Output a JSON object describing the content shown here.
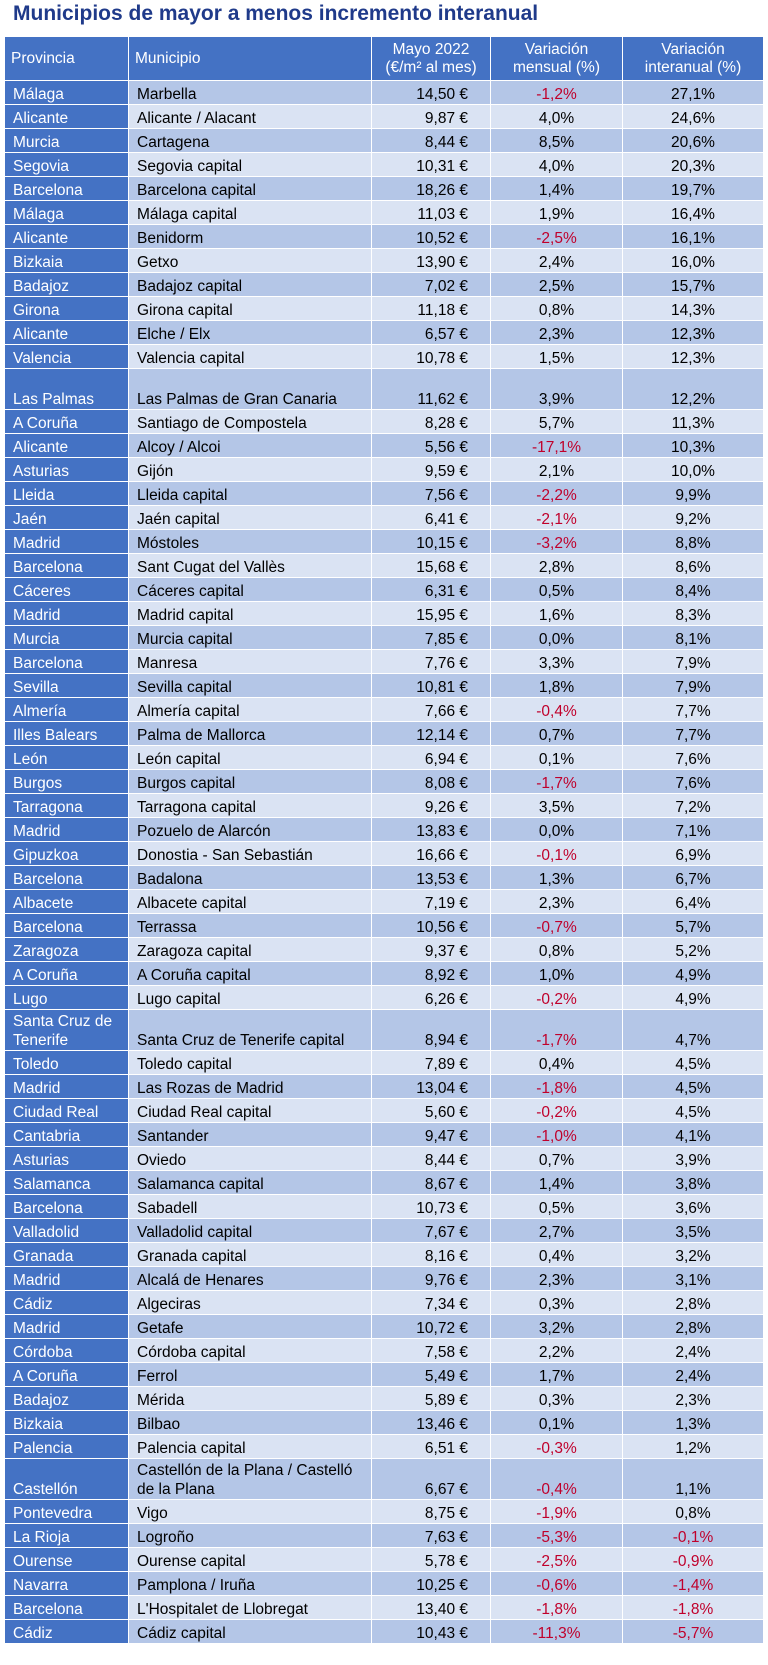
{
  "title": "Municipios de mayor a menos incremento interanual",
  "headers": {
    "provincia": "Provincia",
    "municipio": "Municipio",
    "precio": "Mayo 2022 (€/m² al mes)",
    "mensual": "Variación mensual (%)",
    "interanual": "Variación interanual (%)"
  },
  "rows": [
    {
      "provincia": "Málaga",
      "municipio": "Marbella",
      "precio": "14,50 €",
      "mensual": "-1,2%",
      "interanual": "27,1%"
    },
    {
      "provincia": "Alicante",
      "municipio": "Alicante / Alacant",
      "precio": "9,87 €",
      "mensual": "4,0%",
      "interanual": "24,6%"
    },
    {
      "provincia": "Murcia",
      "municipio": "Cartagena",
      "precio": "8,44 €",
      "mensual": "8,5%",
      "interanual": "20,6%"
    },
    {
      "provincia": "Segovia",
      "municipio": "Segovia capital",
      "precio": "10,31 €",
      "mensual": "4,0%",
      "interanual": "20,3%"
    },
    {
      "provincia": "Barcelona",
      "municipio": "Barcelona capital",
      "precio": "18,26 €",
      "mensual": "1,4%",
      "interanual": "19,7%"
    },
    {
      "provincia": "Málaga",
      "municipio": "Málaga capital",
      "precio": "11,03 €",
      "mensual": "1,9%",
      "interanual": "16,4%"
    },
    {
      "provincia": "Alicante",
      "municipio": "Benidorm",
      "precio": "10,52 €",
      "mensual": "-2,5%",
      "interanual": "16,1%"
    },
    {
      "provincia": "Bizkaia",
      "municipio": "Getxo",
      "precio": "13,90 €",
      "mensual": "2,4%",
      "interanual": "16,0%"
    },
    {
      "provincia": "Badajoz",
      "municipio": "Badajoz capital",
      "precio": "7,02 €",
      "mensual": "2,5%",
      "interanual": "15,7%"
    },
    {
      "provincia": "Girona",
      "municipio": "Girona capital",
      "precio": "11,18 €",
      "mensual": "0,8%",
      "interanual": "14,3%"
    },
    {
      "provincia": "Alicante",
      "municipio": "Elche / Elx",
      "precio": "6,57 €",
      "mensual": "2,3%",
      "interanual": "12,3%"
    },
    {
      "provincia": "Valencia",
      "municipio": "Valencia capital",
      "precio": "10,78 €",
      "mensual": "1,5%",
      "interanual": "12,3%"
    },
    {
      "provincia": "Las Palmas",
      "municipio": "Las Palmas de Gran Canaria",
      "precio": "11,62 €",
      "mensual": "3,9%",
      "interanual": "12,2%",
      "tall": true
    },
    {
      "provincia": "A Coruña",
      "municipio": "Santiago de Compostela",
      "precio": "8,28 €",
      "mensual": "5,7%",
      "interanual": "11,3%"
    },
    {
      "provincia": "Alicante",
      "municipio": "Alcoy / Alcoi",
      "precio": "5,56 €",
      "mensual": "-17,1%",
      "interanual": "10,3%"
    },
    {
      "provincia": "Asturias",
      "municipio": "Gijón",
      "precio": "9,59 €",
      "mensual": "2,1%",
      "interanual": "10,0%"
    },
    {
      "provincia": "Lleida",
      "municipio": "Lleida capital",
      "precio": "7,56 €",
      "mensual": "-2,2%",
      "interanual": "9,9%"
    },
    {
      "provincia": "Jaén",
      "municipio": "Jaén capital",
      "precio": "6,41 €",
      "mensual": "-2,1%",
      "interanual": "9,2%"
    },
    {
      "provincia": "Madrid",
      "municipio": "Móstoles",
      "precio": "10,15 €",
      "mensual": "-3,2%",
      "interanual": "8,8%"
    },
    {
      "provincia": "Barcelona",
      "municipio": "Sant Cugat del Vallès",
      "precio": "15,68 €",
      "mensual": "2,8%",
      "interanual": "8,6%"
    },
    {
      "provincia": "Cáceres",
      "municipio": "Cáceres capital",
      "precio": "6,31 €",
      "mensual": "0,5%",
      "interanual": "8,4%"
    },
    {
      "provincia": "Madrid",
      "municipio": "Madrid capital",
      "precio": "15,95 €",
      "mensual": "1,6%",
      "interanual": "8,3%"
    },
    {
      "provincia": "Murcia",
      "municipio": "Murcia capital",
      "precio": "7,85 €",
      "mensual": "0,0%",
      "interanual": "8,1%"
    },
    {
      "provincia": "Barcelona",
      "municipio": "Manresa",
      "precio": "7,76 €",
      "mensual": "3,3%",
      "interanual": "7,9%"
    },
    {
      "provincia": "Sevilla",
      "municipio": "Sevilla capital",
      "precio": "10,81 €",
      "mensual": "1,8%",
      "interanual": "7,9%"
    },
    {
      "provincia": "Almería",
      "municipio": "Almería capital",
      "precio": "7,66 €",
      "mensual": "-0,4%",
      "interanual": "7,7%"
    },
    {
      "provincia": "Illes Balears",
      "municipio": "Palma de Mallorca",
      "precio": "12,14 €",
      "mensual": "0,7%",
      "interanual": "7,7%"
    },
    {
      "provincia": "León",
      "municipio": "León capital",
      "precio": "6,94 €",
      "mensual": "0,1%",
      "interanual": "7,6%"
    },
    {
      "provincia": "Burgos",
      "municipio": "Burgos capital",
      "precio": "8,08 €",
      "mensual": "-1,7%",
      "interanual": "7,6%"
    },
    {
      "provincia": "Tarragona",
      "municipio": "Tarragona capital",
      "precio": "9,26 €",
      "mensual": "3,5%",
      "interanual": "7,2%"
    },
    {
      "provincia": "Madrid",
      "municipio": "Pozuelo de Alarcón",
      "precio": "13,83 €",
      "mensual": "0,0%",
      "interanual": "7,1%"
    },
    {
      "provincia": "Gipuzkoa",
      "municipio": "Donostia - San Sebastián",
      "precio": "16,66 €",
      "mensual": "-0,1%",
      "interanual": "6,9%"
    },
    {
      "provincia": "Barcelona",
      "municipio": "Badalona",
      "precio": "13,53 €",
      "mensual": "1,3%",
      "interanual": "6,7%"
    },
    {
      "provincia": "Albacete",
      "municipio": "Albacete capital",
      "precio": "7,19 €",
      "mensual": "2,3%",
      "interanual": "6,4%"
    },
    {
      "provincia": "Barcelona",
      "municipio": "Terrassa",
      "precio": "10,56 €",
      "mensual": "-0,7%",
      "interanual": "5,7%"
    },
    {
      "provincia": "Zaragoza",
      "municipio": "Zaragoza capital",
      "precio": "9,37 €",
      "mensual": "0,8%",
      "interanual": "5,2%"
    },
    {
      "provincia": "A Coruña",
      "municipio": "A Coruña capital",
      "precio": "8,92 €",
      "mensual": "1,0%",
      "interanual": "4,9%"
    },
    {
      "provincia": "Lugo",
      "municipio": "Lugo capital",
      "precio": "6,26 €",
      "mensual": "-0,2%",
      "interanual": "4,9%"
    },
    {
      "provincia": "Santa Cruz de Tenerife",
      "municipio": "Santa Cruz de Tenerife capital",
      "precio": "8,94 €",
      "mensual": "-1,7%",
      "interanual": "4,7%",
      "tall": true
    },
    {
      "provincia": "Toledo",
      "municipio": "Toledo capital",
      "precio": "7,89 €",
      "mensual": "0,4%",
      "interanual": "4,5%"
    },
    {
      "provincia": "Madrid",
      "municipio": "Las Rozas de Madrid",
      "precio": "13,04 €",
      "mensual": "-1,8%",
      "interanual": "4,5%"
    },
    {
      "provincia": "Ciudad Real",
      "municipio": "Ciudad Real capital",
      "precio": "5,60 €",
      "mensual": "-0,2%",
      "interanual": "4,5%"
    },
    {
      "provincia": "Cantabria",
      "municipio": "Santander",
      "precio": "9,47 €",
      "mensual": "-1,0%",
      "interanual": "4,1%"
    },
    {
      "provincia": "Asturias",
      "municipio": "Oviedo",
      "precio": "8,44 €",
      "mensual": "0,7%",
      "interanual": "3,9%"
    },
    {
      "provincia": "Salamanca",
      "municipio": "Salamanca capital",
      "precio": "8,67 €",
      "mensual": "1,4%",
      "interanual": "3,8%"
    },
    {
      "provincia": "Barcelona",
      "municipio": "Sabadell",
      "precio": "10,73 €",
      "mensual": "0,5%",
      "interanual": "3,6%"
    },
    {
      "provincia": "Valladolid",
      "municipio": "Valladolid capital",
      "precio": "7,67 €",
      "mensual": "2,7%",
      "interanual": "3,5%"
    },
    {
      "provincia": "Granada",
      "municipio": "Granada capital",
      "precio": "8,16 €",
      "mensual": "0,4%",
      "interanual": "3,2%"
    },
    {
      "provincia": "Madrid",
      "municipio": "Alcalá de Henares",
      "precio": "9,76 €",
      "mensual": "2,3%",
      "interanual": "3,1%"
    },
    {
      "provincia": "Cádiz",
      "municipio": "Algeciras",
      "precio": "7,34 €",
      "mensual": "0,3%",
      "interanual": "2,8%"
    },
    {
      "provincia": "Madrid",
      "municipio": "Getafe",
      "precio": "10,72 €",
      "mensual": "3,2%",
      "interanual": "2,8%"
    },
    {
      "provincia": "Córdoba",
      "municipio": "Córdoba capital",
      "precio": "7,58 €",
      "mensual": "2,2%",
      "interanual": "2,4%"
    },
    {
      "provincia": "A Coruña",
      "municipio": "Ferrol",
      "precio": "5,49 €",
      "mensual": "1,7%",
      "interanual": "2,4%"
    },
    {
      "provincia": "Badajoz",
      "municipio": "Mérida",
      "precio": "5,89 €",
      "mensual": "0,3%",
      "interanual": "2,3%"
    },
    {
      "provincia": "Bizkaia",
      "municipio": "Bilbao",
      "precio": "13,46 €",
      "mensual": "0,1%",
      "interanual": "1,3%"
    },
    {
      "provincia": "Palencia",
      "municipio": "Palencia capital",
      "precio": "6,51 €",
      "mensual": "-0,3%",
      "interanual": "1,2%"
    },
    {
      "provincia": "Castellón",
      "municipio": "Castellón de la Plana / Castelló de la Plana",
      "precio": "6,67 €",
      "mensual": "-0,4%",
      "interanual": "1,1%",
      "tall": true
    },
    {
      "provincia": "Pontevedra",
      "municipio": "Vigo",
      "precio": "8,75 €",
      "mensual": "-1,9%",
      "interanual": "0,8%"
    },
    {
      "provincia": "La Rioja",
      "municipio": "Logroño",
      "precio": "7,63 €",
      "mensual": "-5,3%",
      "interanual": "-0,1%"
    },
    {
      "provincia": "Ourense",
      "municipio": "Ourense capital",
      "precio": "5,78 €",
      "mensual": "-2,5%",
      "interanual": "-0,9%"
    },
    {
      "provincia": "Navarra",
      "municipio": "Pamplona / Iruña",
      "precio": "10,25 €",
      "mensual": "-0,6%",
      "interanual": "-1,4%"
    },
    {
      "provincia": "Barcelona",
      "municipio": "L'Hospitalet de Llobregat",
      "precio": "13,40 €",
      "mensual": "-1,8%",
      "interanual": "-1,8%"
    },
    {
      "provincia": "Cádiz",
      "municipio": "Cádiz capital",
      "precio": "10,43 €",
      "mensual": "-11,3%",
      "interanual": "-5,7%"
    }
  ],
  "colors": {
    "header_bg": "#4472c4",
    "title": "#1f3a8a",
    "row_odd": "#b4c6e7",
    "row_even": "#dae3f3",
    "negative": "#c0002b"
  }
}
